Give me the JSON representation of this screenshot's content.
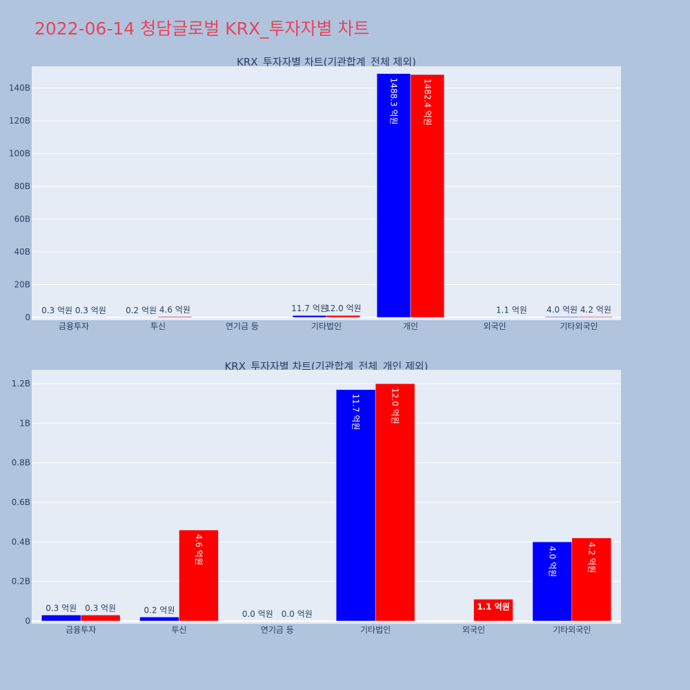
{
  "page_title": "2022-06-14 청담글로벌 KRX_투자자별 차트",
  "colors": {
    "background": "#b0c4de",
    "plot_bg": "#e5ecf6",
    "title": "#e8445a",
    "series_buy": "#0000ff",
    "series_sell": "#ff0000"
  },
  "chart_data": [
    {
      "type": "bar",
      "title": "KRX_투자자별 차트(기관합계_전체 제외)",
      "categories": [
        "금융투자",
        "투신",
        "연기금 등",
        "기타법인",
        "개인",
        "외국인",
        "기타외국인"
      ],
      "series": [
        {
          "color": "#0000ff",
          "values": [
            30000000,
            20000000,
            null,
            1170000000,
            148830000000,
            null,
            400000000
          ],
          "labels": [
            "0.3 억원",
            "0.2 억원",
            "",
            "11.7 억원",
            "1488.3 억원",
            "",
            "4.0 억원"
          ]
        },
        {
          "color": "#ff0000",
          "values": [
            30000000,
            460000000,
            null,
            1200000000,
            148240000000,
            110000000,
            420000000
          ],
          "labels": [
            "0.3 억원",
            "4.6 억원",
            "",
            "12.0 억원",
            "1482.4 억원",
            "1.1 억원",
            "4.2 억원"
          ]
        }
      ],
      "yticks": [
        "0",
        "20B",
        "40B",
        "60B",
        "80B",
        "100B",
        "120B",
        "140B"
      ],
      "ylim": [
        0,
        155000000000
      ],
      "grid": true
    },
    {
      "type": "bar",
      "title": "KRX_투자자별 차트(기관합계_전체_개인 제외)",
      "categories": [
        "금융투자",
        "투신",
        "연기금 등",
        "기타법인",
        "외국인",
        "기타외국인"
      ],
      "series": [
        {
          "color": "#0000ff",
          "values": [
            30000000,
            20000000,
            0,
            1170000000,
            null,
            400000000
          ],
          "labels": [
            "0.3 억원",
            "0.2 억원",
            "0.0 억원",
            "11.7 억원",
            "",
            "4.0 억원"
          ]
        },
        {
          "color": "#ff0000",
          "values": [
            30000000,
            460000000,
            0,
            1200000000,
            110000000,
            420000000
          ],
          "labels": [
            "0.3 억원",
            "4.6 억원",
            "0.0 억원",
            "12.0 억원",
            "1.1 억원",
            "4.2 억원"
          ]
        }
      ],
      "yticks": [
        "0",
        "0.2B",
        "0.4B",
        "0.6B",
        "0.8B",
        "1B",
        "1.2B"
      ],
      "ylim": [
        0,
        1270000000
      ],
      "grid": true
    }
  ]
}
